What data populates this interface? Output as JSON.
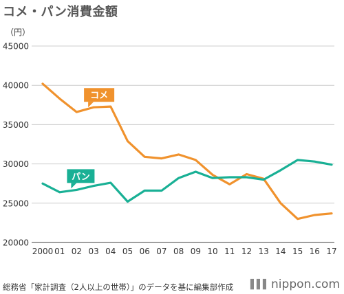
{
  "title": "コメ・パン消費金額",
  "source": "総務省「家計調査（2人以上の世帯）」のデータを基に編集部作成",
  "brand": "nippon.com",
  "brand_icon": "signal-bars-icon",
  "chart_data": {
    "type": "line",
    "title": "コメ・パン消費金額",
    "ylabel": "（円）",
    "xlabel": "",
    "categories": [
      "2000",
      "01",
      "02",
      "03",
      "04",
      "05",
      "06",
      "07",
      "08",
      "09",
      "10",
      "11",
      "12",
      "13",
      "14",
      "15",
      "16",
      "17"
    ],
    "ylim": [
      20000,
      45000
    ],
    "yticks": [
      20000,
      25000,
      30000,
      35000,
      40000,
      45000
    ],
    "grid": "horizontal",
    "series": [
      {
        "name": "コメ",
        "color": "#f0922d",
        "values": [
          40200,
          38300,
          36600,
          37200,
          37300,
          32900,
          30900,
          30700,
          31200,
          30500,
          28600,
          27400,
          28700,
          28100,
          25000,
          23000,
          23500,
          23700
        ]
      },
      {
        "name": "パン",
        "color": "#19b095",
        "values": [
          27500,
          26400,
          26700,
          27200,
          27600,
          25200,
          26600,
          26600,
          28200,
          29000,
          28200,
          28300,
          28300,
          28000,
          29200,
          30500,
          30300,
          29900
        ]
      }
    ]
  }
}
